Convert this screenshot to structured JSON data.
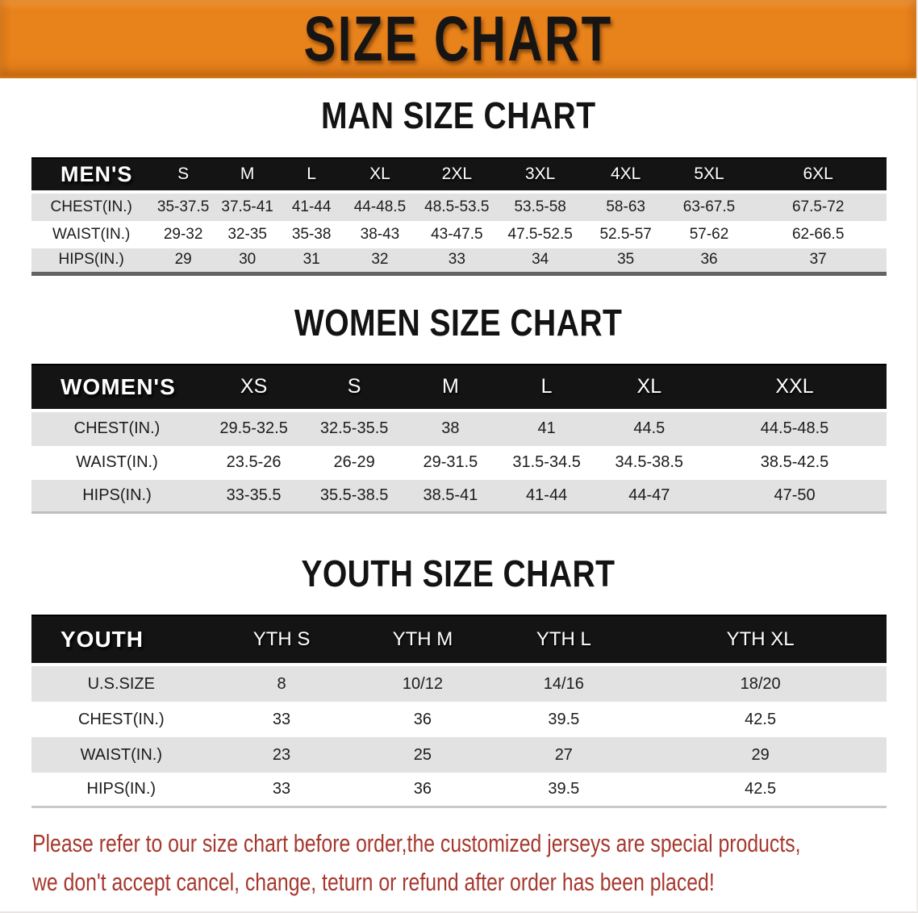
{
  "banner": {
    "title": "SIZE CHART"
  },
  "colors": {
    "banner_bg": "#E8821B",
    "header_bg": "#141414",
    "row_gray": "#E2E2E2",
    "disclaimer_red": "#A6382E"
  },
  "sections": {
    "men": {
      "heading": "MAN SIZE CHART",
      "table": {
        "header": [
          "MEN'S",
          "S",
          "M",
          "L",
          "XL",
          "2XL",
          "3XL",
          "4XL",
          "5XL",
          "6XL"
        ],
        "col_widths": [
          "14%",
          "7.5%",
          "7.5%",
          "7.5%",
          "8.5%",
          "9.5%",
          "10%",
          "10%",
          "9.5%",
          "16%"
        ],
        "rows": [
          [
            "CHEST(IN.)",
            "35-37.5",
            "37.5-41",
            "41-44",
            "44-48.5",
            "48.5-53.5",
            "53.5-58",
            "58-63",
            "63-67.5",
            "67.5-72"
          ],
          [
            "WAIST(IN.)",
            "29-32",
            "32-35",
            "35-38",
            "38-43",
            "43-47.5",
            "47.5-52.5",
            "52.5-57",
            "57-62",
            "62-66.5"
          ],
          [
            "HIPS(IN.)",
            "29",
            "30",
            "31",
            "32",
            "33",
            "34",
            "35",
            "36",
            "37"
          ]
        ]
      }
    },
    "women": {
      "heading": "WOMEN SIZE CHART",
      "table": {
        "header": [
          "WOMEN'S",
          "XS",
          "S",
          "M",
          "L",
          "XL",
          "XXL"
        ],
        "col_widths": [
          "20%",
          "12%",
          "11.5%",
          "11%",
          "11.5%",
          "12.5%",
          "21.5%"
        ],
        "rows": [
          [
            "CHEST(IN.)",
            "29.5-32.5",
            "32.5-35.5",
            "38",
            "41",
            "44.5",
            "44.5-48.5"
          ],
          [
            "WAIST(IN.)",
            "23.5-26",
            "26-29",
            "29-31.5",
            "31.5-34.5",
            "34.5-38.5",
            "38.5-42.5"
          ],
          [
            "HIPS(IN.)",
            "33-35.5",
            "35.5-38.5",
            "38.5-41",
            "41-44",
            "44-47",
            "47-50"
          ]
        ]
      }
    },
    "youth": {
      "heading": "YOUTH SIZE CHART",
      "table": {
        "header": [
          "YOUTH",
          "YTH S",
          "YTH M",
          "YTH L",
          "YTH XL"
        ],
        "col_widths": [
          "21%",
          "16.5%",
          "16.5%",
          "16.5%",
          "29.5%"
        ],
        "rows": [
          [
            "U.S.SIZE",
            "8",
            "10/12",
            "14/16",
            "18/20"
          ],
          [
            "CHEST(IN.)",
            "33",
            "36",
            "39.5",
            "42.5"
          ],
          [
            "WAIST(IN.)",
            "23",
            "25",
            "27",
            "29"
          ],
          [
            "HIPS(IN.)",
            "33",
            "36",
            "39.5",
            "42.5"
          ]
        ]
      }
    }
  },
  "disclaimer": {
    "line1": "Please refer to our size chart before order,the customized jerseys are special products,",
    "line2": "we don't accept cancel, change, teturn or refund after order has been placed!"
  }
}
